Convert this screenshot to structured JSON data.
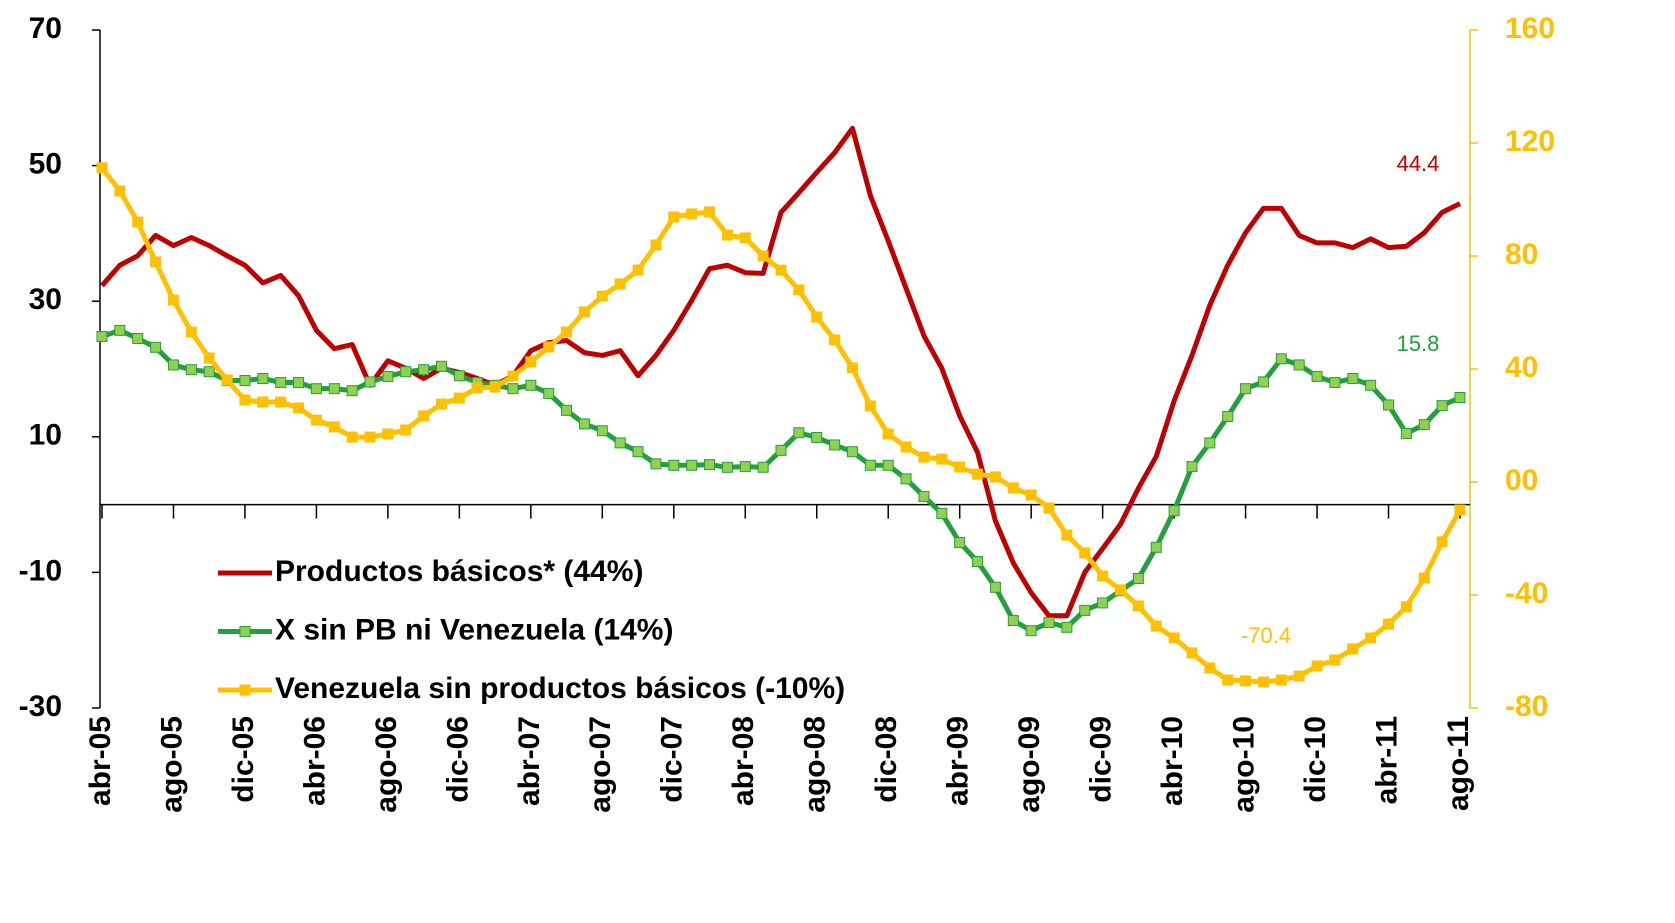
{
  "chart_data": {
    "type": "line",
    "categories": [
      "abr-05",
      null,
      null,
      null,
      "ago-05",
      null,
      null,
      null,
      "dic-05",
      null,
      null,
      null,
      "abr-06",
      null,
      null,
      null,
      "ago-06",
      null,
      null,
      null,
      "dic-06",
      null,
      null,
      null,
      "abr-07",
      null,
      null,
      null,
      "ago-07",
      null,
      null,
      null,
      "dic-07",
      null,
      null,
      null,
      "abr-08",
      null,
      null,
      null,
      "ago-08",
      null,
      null,
      null,
      "dic-08",
      null,
      null,
      null,
      "abr-09",
      null,
      null,
      null,
      "ago-09",
      null,
      null,
      null,
      "dic-09",
      null,
      null,
      null,
      "abr-10",
      null,
      null,
      null,
      "ago-10",
      null,
      null,
      null,
      "dic-10",
      null,
      null,
      null,
      "abr-11",
      null,
      null,
      null,
      "ago-11"
    ],
    "series": [
      {
        "name": "Productos básicos* (44%)",
        "color": "#c00000",
        "marker": "none",
        "values": [
          32.3,
          35.3,
          36.7,
          39.7,
          38.2,
          39.4,
          38.2,
          36.7,
          35.3,
          32.7,
          33.8,
          30.8,
          25.7,
          23.0,
          23.6,
          17.6,
          21.2,
          20.1,
          18.6,
          20.1,
          19.5,
          18.6,
          17.6,
          19.0,
          22.7,
          23.9,
          24.2,
          22.4,
          22.0,
          22.7,
          19.0,
          22.0,
          25.7,
          30.1,
          34.8,
          35.3,
          34.2,
          34.1,
          43.1,
          46.0,
          49.0,
          51.9,
          55.5,
          45.6,
          38.9,
          31.9,
          24.9,
          20.1,
          13.1,
          7.7,
          -2.4,
          -8.6,
          -13.0,
          -16.4,
          -16.4,
          -10.0,
          -6.5,
          -2.9,
          2.4,
          7.1,
          15.3,
          22.0,
          29.4,
          35.3,
          40.1,
          43.7,
          43.7,
          39.7,
          38.6,
          38.6,
          37.9,
          39.2,
          37.9,
          38.1,
          40.1,
          43.1,
          44.4
        ]
      },
      {
        "name": "X sin PB ni Venezuela (14%)",
        "color": "#22a040",
        "marker": "square",
        "marker_color": "#92d050",
        "values": [
          24.8,
          25.7,
          24.5,
          23.2,
          20.6,
          19.9,
          19.6,
          18.3,
          18.3,
          18.6,
          18.0,
          18.0,
          17.1,
          17.1,
          16.8,
          18.1,
          18.9,
          19.6,
          19.9,
          20.4,
          19.0,
          18.0,
          17.6,
          17.1,
          17.6,
          16.4,
          13.9,
          11.9,
          10.9,
          9.1,
          7.8,
          6.0,
          5.8,
          5.8,
          5.9,
          5.5,
          5.6,
          5.5,
          8.0,
          10.6,
          9.9,
          8.8,
          7.8,
          5.8,
          5.8,
          3.8,
          1.2,
          -1.3,
          -5.6,
          -8.4,
          -12.2,
          -17.1,
          -18.6,
          -17.4,
          -18.1,
          -15.6,
          -14.5,
          -12.7,
          -10.9,
          -6.3,
          -0.9,
          5.6,
          9.1,
          13.0,
          17.1,
          18.1,
          21.5,
          20.6,
          18.9,
          18.0,
          18.6,
          17.6,
          14.7,
          10.5,
          11.8,
          14.6,
          15.8
        ]
      },
      {
        "name": "Venezuela sin productos básicos (-10%)",
        "color": "#ffc000",
        "marker": "square",
        "marker_color": "#ffc000",
        "axis": "y2",
        "values": [
          111.2,
          103.0,
          92.0,
          77.9,
          64.4,
          53.1,
          43.9,
          36.1,
          29.0,
          28.3,
          28.3,
          26.2,
          21.9,
          19.5,
          15.9,
          15.9,
          17.0,
          18.4,
          23.4,
          27.6,
          29.7,
          33.3,
          33.6,
          37.5,
          42.5,
          47.8,
          53.1,
          60.2,
          65.8,
          70.1,
          75.0,
          83.9,
          93.8,
          94.9,
          95.6,
          87.4,
          86.4,
          80.0,
          75.0,
          68.0,
          58.4,
          50.3,
          40.4,
          26.9,
          17.0,
          12.4,
          8.8,
          8.1,
          5.3,
          2.8,
          1.8,
          -2.1,
          -4.6,
          -9.2,
          -18.8,
          -25.1,
          -33.3,
          -38.2,
          -43.9,
          -51.0,
          -55.2,
          -60.5,
          -65.8,
          -70.1,
          -70.4,
          -70.8,
          -70.1,
          -68.7,
          -65.1,
          -63.0,
          -59.1,
          -55.2,
          -50.3,
          -44.2,
          -34.0,
          -21.2,
          -9.9
        ]
      }
    ],
    "ylim": [
      -30,
      70
    ],
    "yticks": [
      -30,
      -10,
      10,
      30,
      50,
      70
    ],
    "y2lim": [
      -80,
      160
    ],
    "y2ticks": [
      -80,
      -40,
      {
        "value": 0,
        "label": "00"
      },
      40,
      80,
      120,
      160
    ],
    "y2color": "#ffc000",
    "annotations": [
      {
        "text": "44.4",
        "color": "#c00000"
      },
      {
        "text": "15.8",
        "color": "#22a040"
      },
      {
        "text": "-70.4",
        "color": "#ffc000"
      }
    ],
    "legend": "lower left",
    "grid": false
  }
}
